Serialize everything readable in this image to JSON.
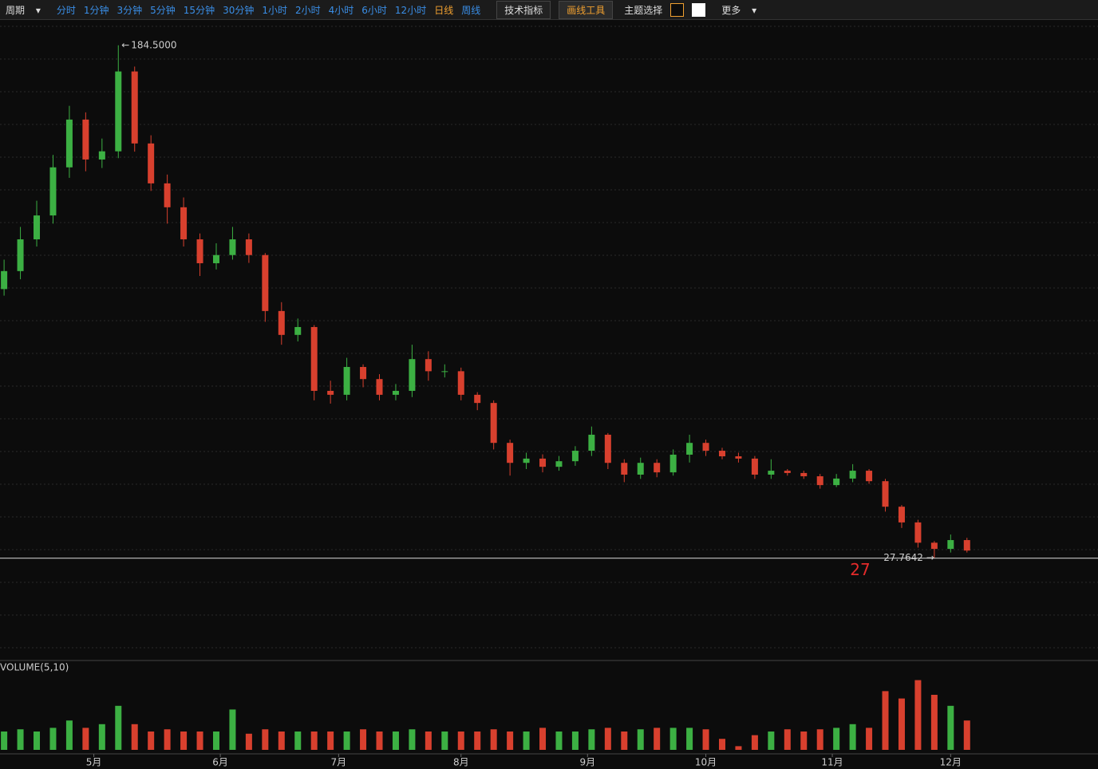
{
  "toolbar": {
    "period": "周期",
    "intervals": [
      "分时",
      "1分钟",
      "3分钟",
      "5分钟",
      "15分钟",
      "30分钟",
      "1小时",
      "2小时",
      "4小时",
      "6小时",
      "12小时",
      "日线",
      "周线"
    ],
    "active_interval": 11,
    "tech": "技术指标",
    "draw": "画线工具",
    "theme": "主题选择",
    "more": "更多"
  },
  "chart_data": {
    "type": "candlestick",
    "up_color": "#3cb043",
    "down_color": "#d8402e",
    "x": [
      1,
      5,
      9,
      13,
      17,
      21,
      25,
      29,
      33,
      37,
      41,
      45,
      49,
      53,
      57,
      61,
      65,
      69,
      73,
      77,
      81,
      85,
      89,
      93,
      97,
      101,
      105,
      109,
      113,
      117,
      121,
      125,
      129,
      133,
      137,
      141,
      145,
      149,
      153,
      157,
      161,
      165,
      169,
      173,
      177,
      181,
      185,
      189,
      193,
      197,
      201,
      205,
      209,
      213,
      217,
      221,
      225,
      229,
      233,
      237
    ],
    "open": [
      110,
      115.5,
      125.2,
      132.5,
      147.2,
      161.8,
      149.6,
      152.1,
      176.5,
      154.5,
      142.3,
      135,
      125.2,
      117.9,
      120.4,
      125.2,
      120.4,
      103.3,
      96,
      98.4,
      78.9,
      77.7,
      86.2,
      82.5,
      77.7,
      78.9,
      88.6,
      84.9,
      84.9,
      77.7,
      75.2,
      63,
      56.9,
      58.2,
      55.7,
      57.4,
      60.6,
      65.5,
      56.9,
      53.3,
      56.9,
      54,
      59.4,
      63,
      60.6,
      58.9,
      58.2,
      53.3,
      54.5,
      53.8,
      52.8,
      50.1,
      52.1,
      54.5,
      51.3,
      43.5,
      38.7,
      32.5,
      30.6,
      33.3
    ],
    "high": [
      119,
      129,
      137,
      151,
      166,
      164,
      156,
      184.5,
      178,
      157,
      145,
      138,
      127,
      124,
      129,
      127,
      121,
      106,
      101,
      99,
      82,
      89,
      87,
      84,
      81,
      93,
      91,
      87,
      86,
      78.5,
      76,
      64,
      60,
      59.5,
      59,
      62,
      68,
      66,
      58,
      58.5,
      58,
      61,
      65.5,
      64,
      61.5,
      60,
      59,
      58,
      55,
      54.5,
      53.5,
      53.5,
      56.5,
      55,
      52,
      44,
      39.5,
      33,
      35,
      34
    ],
    "low": [
      108,
      113,
      123,
      130,
      144,
      146,
      147,
      150,
      152,
      140,
      130,
      123,
      114,
      116,
      119,
      118,
      100,
      93,
      94,
      76,
      75,
      76,
      80,
      76,
      76,
      77,
      82,
      83,
      76,
      73,
      61,
      53,
      55,
      54,
      54.5,
      56,
      59,
      55,
      51,
      52,
      52.5,
      53,
      57,
      59,
      58,
      57,
      52,
      52,
      53,
      52,
      49,
      49.5,
      51,
      50.5,
      42,
      37,
      31,
      27.7642,
      29.5,
      29.5
    ],
    "close": [
      115.5,
      125.2,
      132.5,
      147.2,
      161.8,
      149.6,
      152.1,
      176.5,
      154.5,
      142.3,
      135,
      125.2,
      117.9,
      120.4,
      125.2,
      120.4,
      103.3,
      96,
      98.4,
      78.9,
      77.7,
      86.2,
      82.5,
      77.7,
      78.9,
      88.6,
      84.9,
      84.9,
      77.7,
      75.2,
      63,
      56.9,
      58.2,
      55.7,
      57.4,
      60.6,
      65.5,
      56.9,
      53.3,
      56.9,
      54,
      59.4,
      63,
      60.6,
      58.9,
      58.2,
      53.3,
      54.5,
      53.8,
      52.8,
      50.1,
      52.1,
      54.5,
      51.3,
      43.5,
      38.7,
      32.5,
      30.6,
      33.3,
      30.1
    ],
    "xlim": [
      0,
      239
    ],
    "ylim": [
      -3.5,
      192
    ],
    "xticks": [
      {
        "value": 23,
        "label": "5月"
      },
      {
        "value": 54,
        "label": "6月"
      },
      {
        "value": 83,
        "label": "7月"
      },
      {
        "value": 113,
        "label": "8月"
      },
      {
        "value": 144,
        "label": "9月"
      },
      {
        "value": 173,
        "label": "10月"
      },
      {
        "value": 204,
        "label": "11月"
      },
      {
        "value": 233,
        "label": "12月"
      }
    ],
    "high_label": {
      "value": 184.5,
      "label": "184.5000"
    },
    "low_label": {
      "value": 27.7642,
      "label": "27.7642"
    },
    "cursor_label": "27",
    "volume": {
      "title": "VOLUME(5,10)",
      "ylim": [
        0,
        100
      ],
      "values": [
        25,
        28,
        25,
        30,
        40,
        30,
        35,
        60,
        35,
        25,
        28,
        25,
        25,
        25,
        55,
        22,
        28,
        25,
        25,
        25,
        25,
        25,
        28,
        25,
        25,
        28,
        25,
        25,
        25,
        25,
        28,
        25,
        25,
        30,
        25,
        25,
        28,
        30,
        25,
        28,
        30,
        30,
        30,
        28,
        15,
        5,
        20,
        25,
        28,
        25,
        28,
        30,
        35,
        30,
        80,
        70,
        95,
        75,
        60,
        40
      ]
    }
  }
}
